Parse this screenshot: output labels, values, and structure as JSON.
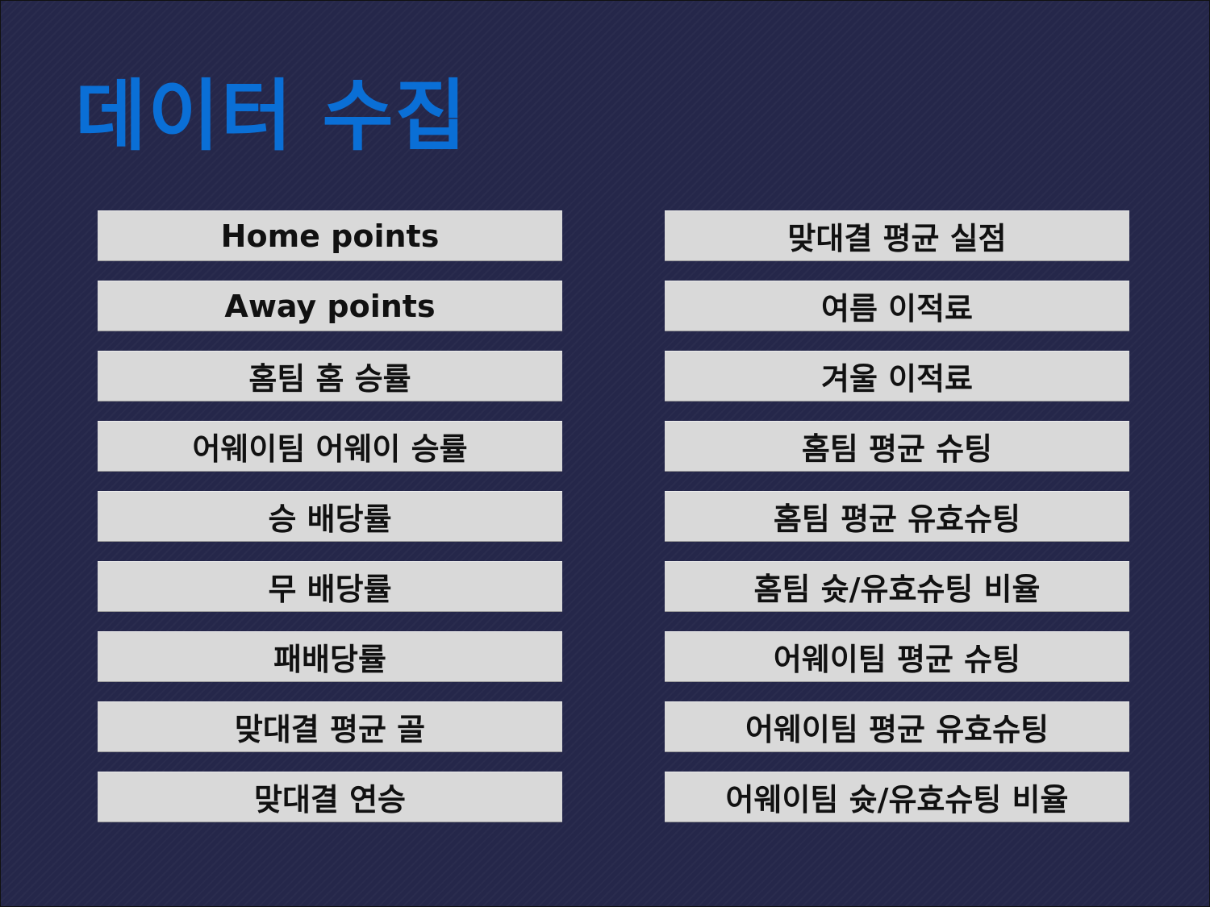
{
  "slide": {
    "title": "데이터 수집",
    "colors": {
      "background": "#25274a",
      "title": "#0a6fd6",
      "box": "#d9d9d9",
      "box_text": "#111111"
    },
    "left_items": [
      "Home points",
      "Away points",
      "홈팀 홈 승률",
      "어웨이팀 어웨이 승률",
      "승 배당률",
      "무 배당률",
      "패배당률",
      "맞대결 평균 골",
      "맞대결 연승"
    ],
    "right_items": [
      "맞대결 평균 실점",
      "여름 이적료",
      "겨울 이적료",
      "홈팀 평균 슈팅",
      "홈팀 평균 유효슈팅",
      "홈팀 슛/유효슈팅 비율",
      "어웨이팀 평균 슈팅",
      "어웨이팀 평균 유효슈팅",
      "어웨이팀 슛/유효슈팅 비율"
    ]
  }
}
